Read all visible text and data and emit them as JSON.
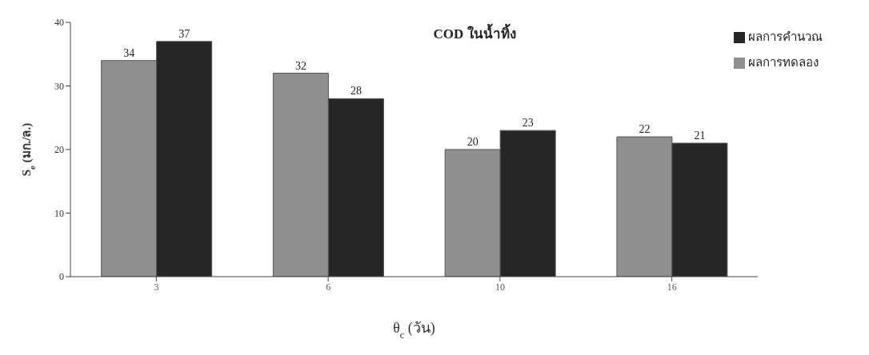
{
  "chart_data": {
    "type": "bar",
    "title": "COD ในน้ำทิ้ง",
    "xlabel": "θ$_{c}$ (วัน)",
    "ylabel": "S$_{e}$ (มก./ล.)",
    "categories": [
      "3",
      "6",
      "10",
      "16"
    ],
    "series": [
      {
        "name": "ผลการทดลอง",
        "color": "#8f8f8f",
        "values": [
          34,
          32,
          20,
          22
        ]
      },
      {
        "name": "ผลการคำนวณ",
        "color": "#262626",
        "values": [
          37,
          28,
          23,
          21
        ]
      }
    ],
    "ylim": [
      0,
      40
    ],
    "yticks": [
      0,
      10,
      20,
      30,
      40
    ],
    "grid": false,
    "legend": "top right",
    "data_labels": true
  }
}
